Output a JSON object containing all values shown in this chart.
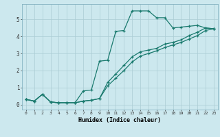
{
  "xlabel": "Humidex (Indice chaleur)",
  "bg_color": "#cce8ee",
  "grid_color": "#aaccd4",
  "line_color": "#1a7a6e",
  "xlim": [
    -0.5,
    23.5
  ],
  "ylim": [
    -0.3,
    5.9
  ],
  "line1_y": [
    0.3,
    0.2,
    0.6,
    0.15,
    0.1,
    0.1,
    0.1,
    0.8,
    0.85,
    2.55,
    2.6,
    4.3,
    4.35,
    5.5,
    5.5,
    5.5,
    5.1,
    5.1,
    4.5,
    4.55,
    4.6,
    4.65,
    4.5,
    4.45
  ],
  "line2_y": [
    0.3,
    0.2,
    0.6,
    0.15,
    0.1,
    0.1,
    0.1,
    0.2,
    0.25,
    0.35,
    1.3,
    1.8,
    2.3,
    2.8,
    3.1,
    3.2,
    3.3,
    3.55,
    3.65,
    3.8,
    4.05,
    4.25,
    4.5,
    4.45
  ],
  "line3_y": [
    0.3,
    0.2,
    0.6,
    0.15,
    0.1,
    0.1,
    0.1,
    0.2,
    0.25,
    0.35,
    1.1,
    1.55,
    2.0,
    2.5,
    2.85,
    3.0,
    3.15,
    3.35,
    3.5,
    3.65,
    3.85,
    4.05,
    4.35,
    4.45
  ],
  "xtick_labels": [
    "0",
    "1",
    "2",
    "3",
    "4",
    "5",
    "6",
    "7",
    "8",
    "9",
    "10",
    "11",
    "12",
    "13",
    "14",
    "15",
    "16",
    "17",
    "18",
    "19",
    "20",
    "21",
    "22",
    "23"
  ],
  "ytick_labels": [
    "0",
    "1",
    "2",
    "3",
    "4",
    "5"
  ]
}
